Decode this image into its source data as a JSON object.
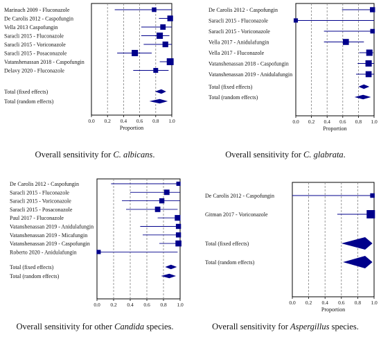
{
  "colors": {
    "marker": "#00008b",
    "ci_line": "#00008b",
    "grid": "#808080",
    "frame": "#000000"
  },
  "chart_data": [
    {
      "type": "forest",
      "xlabel": "Proportion",
      "xlim": [
        0,
        1
      ],
      "ticks": [
        "0.0",
        "0.2",
        "0.4",
        "0.6",
        "0.8",
        "1.0"
      ],
      "caption": {
        "prefix": "Overall sensitivity for ",
        "italic": "C. albicans",
        "suffix": "."
      },
      "studies": [
        {
          "label": "Marinach 2009 - Fluconazole",
          "est": 0.78,
          "lo": 0.29,
          "hi": 1.0,
          "weight": 0.35
        },
        {
          "label": "De Carolis 2012 - Caspofungin",
          "est": 0.98,
          "lo": 0.84,
          "hi": 1.0,
          "weight": 0.55
        },
        {
          "label": "Vella 2013 Caspofungin",
          "est": 0.89,
          "lo": 0.62,
          "hi": 1.0,
          "weight": 0.5
        },
        {
          "label": "Saracli 2015 - Fluconazole",
          "est": 0.85,
          "lo": 0.62,
          "hi": 0.97,
          "weight": 0.65
        },
        {
          "label": "Saracli 2015 - Voriconazole",
          "est": 0.92,
          "lo": 0.65,
          "hi": 1.0,
          "weight": 0.55
        },
        {
          "label": "Saracli 2015 - Posaconazole",
          "est": 0.54,
          "lo": 0.32,
          "hi": 0.75,
          "weight": 0.65
        },
        {
          "label": "Vatanshenassan 2018 - Caspofungin",
          "est": 0.98,
          "lo": 0.85,
          "hi": 1.0,
          "weight": 0.75
        },
        {
          "label": "Delavy 2020 - Fluconazole",
          "est": 0.8,
          "lo": 0.52,
          "hi": 0.96,
          "weight": 0.4
        }
      ],
      "totals": [
        {
          "label": "Total (fixed effects)",
          "est": 0.87,
          "lo": 0.79,
          "hi": 0.93
        },
        {
          "label": "Total (random effects)",
          "est": 0.85,
          "lo": 0.72,
          "hi": 0.95
        }
      ]
    },
    {
      "type": "forest",
      "xlabel": "Proportion",
      "xlim": [
        0,
        1
      ],
      "ticks": [
        "0.0",
        "0.2",
        "0.4",
        "0.6",
        "0.8",
        "1.0"
      ],
      "caption": {
        "prefix": "Overall sensitivity for ",
        "italic": "C. glabrata",
        "suffix": "."
      },
      "studies": [
        {
          "label": "De Carolis 2012 - Caspofungin",
          "est": 0.98,
          "lo": 0.59,
          "hi": 1.0,
          "weight": 0.45
        },
        {
          "label": "Saracli 2015 - Fluconazole",
          "est": 0.0,
          "lo": 0.0,
          "hi": 1.0,
          "weight": 0.3
        },
        {
          "label": "Saracli 2015 - Voriconazole",
          "est": 0.98,
          "lo": 0.36,
          "hi": 1.0,
          "weight": 0.35
        },
        {
          "label": "Vella 2017 - Anidulafungin",
          "est": 0.64,
          "lo": 0.36,
          "hi": 0.87,
          "weight": 0.6
        },
        {
          "label": "Vella 2017 - Fluconazole",
          "est": 0.94,
          "lo": 0.81,
          "hi": 0.99,
          "weight": 0.65
        },
        {
          "label": "Vatanshenassan 2018 - Caspofungin",
          "est": 0.93,
          "lo": 0.79,
          "hi": 1.0,
          "weight": 0.65
        },
        {
          "label": "Vatanshenassan 2019 - Anidulafungin",
          "est": 0.93,
          "lo": 0.77,
          "hi": 1.0,
          "weight": 0.6
        }
      ],
      "totals": [
        {
          "label": "Total (fixed effects)",
          "est": 0.87,
          "lo": 0.8,
          "hi": 0.94
        },
        {
          "label": "Total (random effects)",
          "est": 0.86,
          "lo": 0.75,
          "hi": 0.96
        }
      ]
    },
    {
      "type": "forest",
      "xlabel": "",
      "xlim": [
        0,
        1
      ],
      "ticks": [
        "0.0",
        "0.2",
        "0.4",
        "0.6",
        "0.8",
        "1.0"
      ],
      "caption": {
        "prefix": "Overall sensitivity for other ",
        "italic": "Candida",
        "suffix": " species."
      },
      "studies": [
        {
          "label": "De Carolis 2012 - Caspofungin",
          "est": 0.98,
          "lo": 0.17,
          "hi": 1.0,
          "weight": 0.3
        },
        {
          "label": "Saracli 2015 - Fluconazole",
          "est": 0.84,
          "lo": 0.4,
          "hi": 1.0,
          "weight": 0.5
        },
        {
          "label": "Saracli 2015 - Voriconazole",
          "est": 0.78,
          "lo": 0.3,
          "hi": 1.0,
          "weight": 0.45
        },
        {
          "label": "Saracli 2015 - Posaconazole",
          "est": 0.73,
          "lo": 0.35,
          "hi": 0.97,
          "weight": 0.5
        },
        {
          "label": "Paul 2017 - Fluconazole",
          "est": 0.97,
          "lo": 0.73,
          "hi": 1.0,
          "weight": 0.55
        },
        {
          "label": "Vatanshenassan 2019 - Anidulafungin",
          "est": 0.98,
          "lo": 0.52,
          "hi": 1.0,
          "weight": 0.45
        },
        {
          "label": "Vatanshenassan 2019 - Micafungin",
          "est": 0.98,
          "lo": 0.55,
          "hi": 1.0,
          "weight": 0.45
        },
        {
          "label": "Vatanshenassan 2019 - Caspofungin",
          "est": 0.98,
          "lo": 0.75,
          "hi": 1.0,
          "weight": 0.6
        },
        {
          "label": "Roberto 2020 - Anidulafungin",
          "est": 0.02,
          "lo": 0.0,
          "hi": 0.97,
          "weight": 0.3
        }
      ],
      "totals": [
        {
          "label": "Total (fixed effects)",
          "est": 0.89,
          "lo": 0.82,
          "hi": 0.96
        },
        {
          "label": "Total (random effects)",
          "est": 0.87,
          "lo": 0.77,
          "hi": 0.95
        }
      ]
    },
    {
      "type": "forest",
      "xlabel": "Proportion",
      "xlim": [
        0,
        1
      ],
      "ticks": [
        "0.0",
        "0.2",
        "0.4",
        "0.6",
        "0.8",
        "1.0"
      ],
      "caption": {
        "prefix": "Overall sensitivity for ",
        "italic": "Aspergillus",
        "suffix": " species."
      },
      "studies": [
        {
          "label": "De Carolis 2012 - Caspofungin",
          "est": 0.98,
          "lo": 0.0,
          "hi": 1.0,
          "weight": 0.35
        },
        {
          "label": "Gitman 2017 - Voriconazole",
          "est": 0.96,
          "lo": 0.55,
          "hi": 1.0,
          "weight": 1.0
        }
      ],
      "totals": [
        {
          "label": "Total (fixed effects)",
          "est": 0.89,
          "lo": 0.6,
          "hi": 0.98
        },
        {
          "label": "Total (random effects)",
          "est": 0.89,
          "lo": 0.62,
          "hi": 0.98
        }
      ]
    }
  ]
}
